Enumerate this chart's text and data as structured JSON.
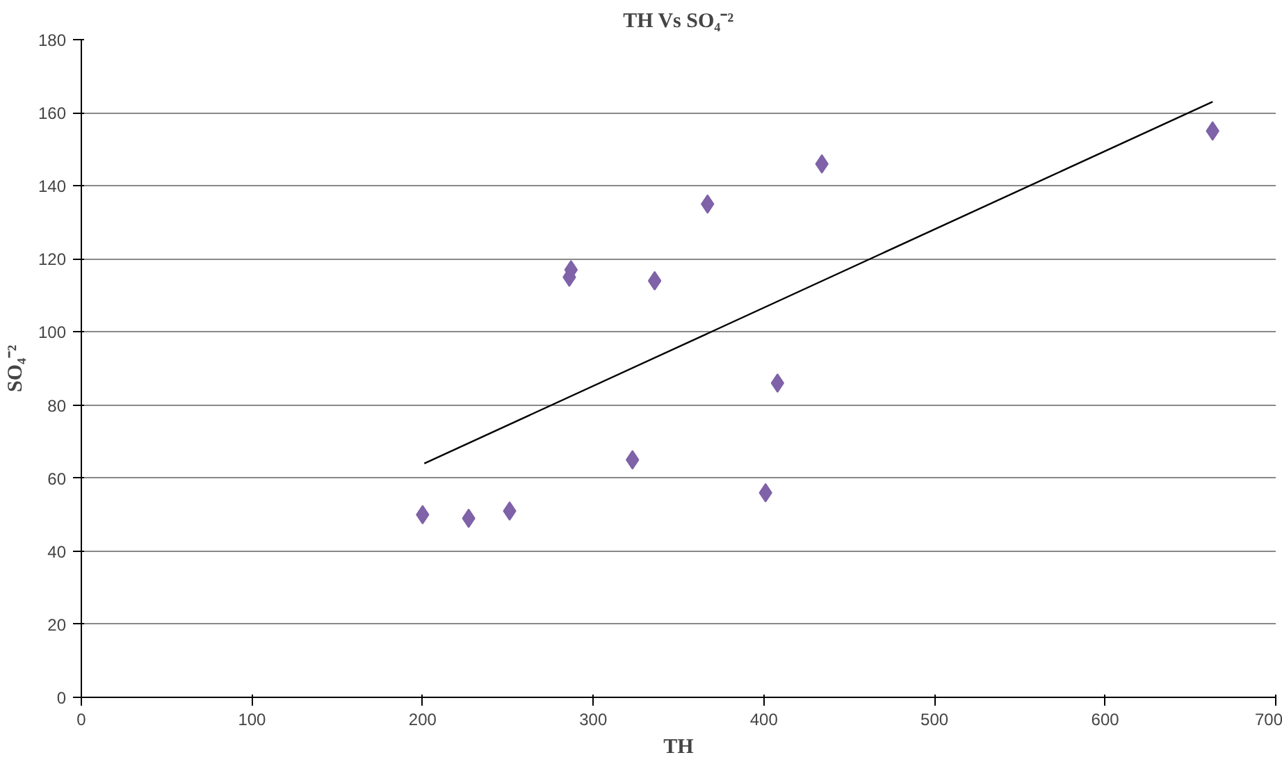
{
  "chart_data": {
    "type": "scatter",
    "title": "TH Vs SO₄⁻²",
    "xlabel": "TH",
    "ylabel": "SO₄⁻²",
    "xlim": [
      0,
      700
    ],
    "xticks": [
      0,
      100,
      200,
      300,
      400,
      500,
      600,
      700
    ],
    "ylim": [
      0,
      180
    ],
    "yticks": [
      0,
      20,
      40,
      60,
      80,
      100,
      120,
      140,
      160,
      180
    ],
    "grid": "y",
    "marker": "diamond",
    "series": [
      {
        "color": "#7f62a8",
        "x": [
          200,
          227,
          251,
          286,
          287,
          323,
          336,
          367,
          401,
          408,
          434,
          663
        ],
        "values": [
          50,
          49,
          51,
          115,
          117,
          65,
          114,
          135,
          56,
          86,
          146,
          155
        ]
      },
      {
        "type": "line",
        "color": "#000000",
        "marker": "none",
        "x": [
          201,
          663
        ],
        "values": [
          64,
          163
        ]
      }
    ]
  }
}
